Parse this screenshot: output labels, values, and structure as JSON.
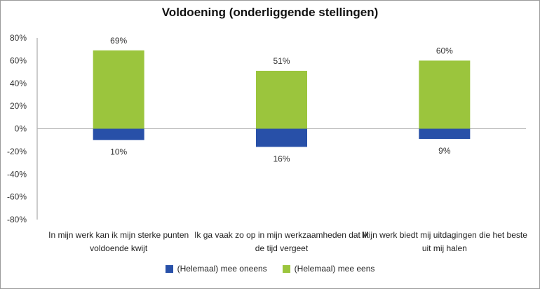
{
  "chart_data": {
    "type": "bar",
    "title": "Voldoening (onderliggende stellingen)",
    "categories": [
      [
        "In mijn werk kan ik mijn sterke punten",
        "voldoende kwijt"
      ],
      [
        "Ik ga vaak zo op in mijn werkzaamheden dat ik",
        "de tijd vergeet"
      ],
      [
        "Mijn werk biedt mij uitdagingen die het beste",
        "uit mij halen"
      ]
    ],
    "series": [
      {
        "name": "(Helemaal) mee oneens",
        "values": [
          -10,
          -16,
          -9
        ],
        "labels": [
          "10%",
          "16%",
          "9%"
        ],
        "color": "#2850A8"
      },
      {
        "name": "(Helemaal) mee eens",
        "values": [
          69,
          51,
          60
        ],
        "labels": [
          "69%",
          "51%",
          "60%"
        ],
        "color": "#9BC53D"
      }
    ],
    "ylim": [
      -80,
      80
    ],
    "yticks": [
      80,
      60,
      40,
      20,
      0,
      -20,
      -40,
      -60,
      -80
    ],
    "ytick_labels": [
      "80%",
      "60%",
      "40%",
      "20%",
      "0%",
      "-20%",
      "-40%",
      "-60%",
      "-80%"
    ],
    "stacked": true,
    "legend": "bottom",
    "grid": false,
    "xlabel": "",
    "ylabel": ""
  }
}
